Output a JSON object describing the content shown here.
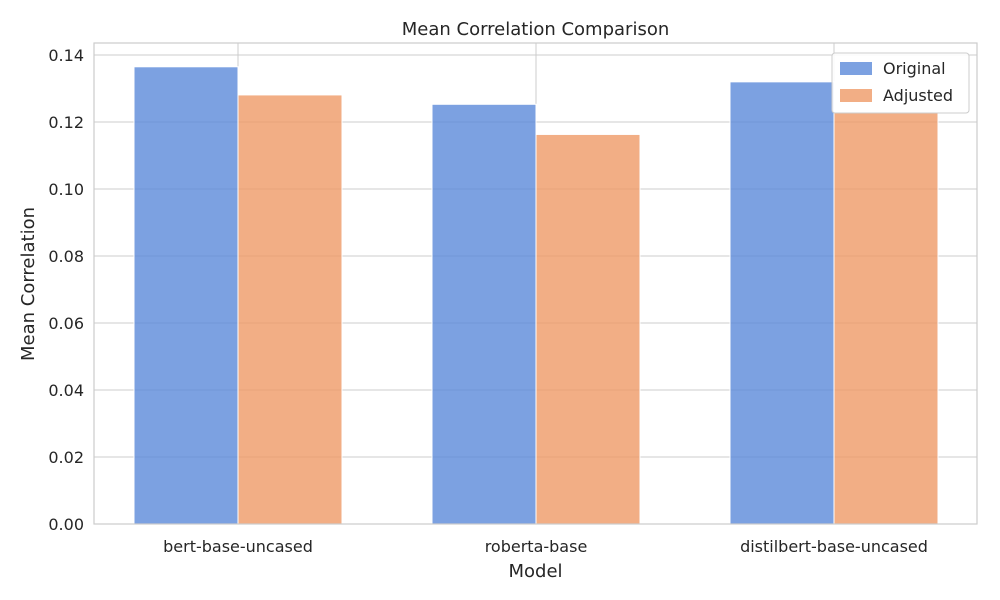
{
  "chart_data": {
    "type": "bar",
    "title": "Mean Correlation Comparison",
    "xlabel": "Model",
    "ylabel": "Mean Correlation",
    "categories": [
      "bert-base-uncased",
      "roberta-base",
      "distilbert-base-uncased"
    ],
    "series": [
      {
        "name": "Original",
        "values": [
          0.1365,
          0.1253,
          0.132
        ],
        "color": "#5b8ad9"
      },
      {
        "name": "Adjusted",
        "values": [
          0.1281,
          0.1163,
          0.123
        ],
        "color": "#ef9a67"
      }
    ],
    "ylim": [
      0,
      0.1436
    ],
    "yticks": [
      "0.00",
      "0.02",
      "0.04",
      "0.06",
      "0.08",
      "0.10",
      "0.12",
      "0.14"
    ],
    "ytick_values": [
      0,
      0.02,
      0.04,
      0.06,
      0.08,
      0.1,
      0.12,
      0.14
    ],
    "grid": true,
    "legend_position": "top-right"
  }
}
